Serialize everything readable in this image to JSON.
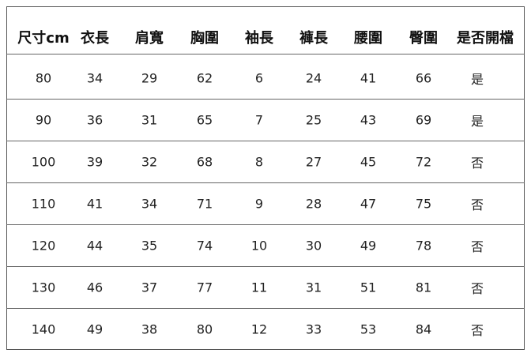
{
  "table": {
    "header": [
      "尺寸cm",
      "衣長",
      "肩寬",
      "胸圍",
      "袖長",
      "褲長",
      "腰圍",
      "臀圍",
      "是否開檔"
    ],
    "rows": [
      [
        80,
        34,
        29,
        62,
        6,
        24,
        41,
        66,
        "是"
      ],
      [
        90,
        36,
        31,
        65,
        7,
        25,
        43,
        69,
        "是"
      ],
      [
        100,
        39,
        32,
        68,
        8,
        27,
        45,
        72,
        "否"
      ],
      [
        110,
        41,
        34,
        71,
        9,
        28,
        47,
        75,
        "否"
      ],
      [
        120,
        44,
        35,
        74,
        10,
        30,
        49,
        78,
        "否"
      ],
      [
        130,
        46,
        37,
        77,
        11,
        31,
        51,
        81,
        "否"
      ],
      [
        140,
        49,
        38,
        80,
        12,
        33,
        53,
        84,
        "否"
      ]
    ]
  }
}
